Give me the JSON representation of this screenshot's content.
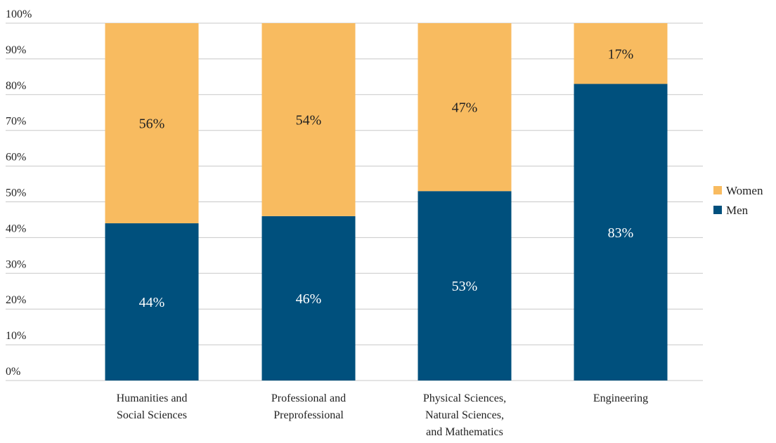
{
  "chart_data": {
    "type": "bar",
    "stacked": true,
    "categories": [
      "Humanities and Social Sciences",
      "Professional and Preprofessional",
      "Physical Sciences, Natural Sciences, and Mathematics",
      "Engineering"
    ],
    "category_label_lines": [
      [
        "Humanities and",
        "Social Sciences"
      ],
      [
        "Professional and",
        "Preprofessional"
      ],
      [
        "Physical Sciences,",
        "Natural Sciences,",
        "and Mathematics"
      ],
      [
        "Engineering"
      ]
    ],
    "series": [
      {
        "name": "Men",
        "values": [
          44,
          46,
          53,
          83
        ],
        "labels": [
          "44%",
          "46%",
          "53%",
          "83%"
        ],
        "color": "#00507d",
        "label_color": "#ffffff"
      },
      {
        "name": "Women",
        "values": [
          56,
          54,
          47,
          17
        ],
        "labels": [
          "56%",
          "54%",
          "47%",
          "17%"
        ],
        "color": "#f8bb60",
        "label_color": "#222222"
      }
    ],
    "y_ticks": [
      "0%",
      "10%",
      "20%",
      "30%",
      "40%",
      "50%",
      "60%",
      "70%",
      "80%",
      "90%",
      "100%"
    ],
    "ylim": [
      0,
      100
    ],
    "grid": true,
    "grid_color": "#c8c8c8",
    "legend": {
      "placement": "right",
      "order": [
        "Women",
        "Men"
      ]
    }
  }
}
